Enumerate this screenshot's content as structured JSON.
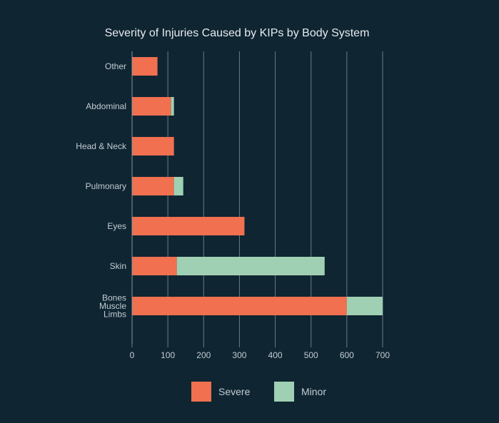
{
  "chart_data": {
    "type": "bar",
    "orientation": "horizontal",
    "stacked": true,
    "title": "Severity of Injuries Caused by KIPs by Body System",
    "categories": [
      [
        "Other"
      ],
      [
        "Abdominal"
      ],
      [
        "Head & Neck"
      ],
      [
        "Pulmonary"
      ],
      [
        "Eyes"
      ],
      [
        "Skin"
      ],
      [
        "Bones",
        "Muscle",
        "Limbs"
      ]
    ],
    "series": [
      {
        "name": "Severe",
        "color": "#f07050",
        "values": [
          71,
          109,
          117,
          117,
          314,
          125,
          600
        ]
      },
      {
        "name": "Minor",
        "color": "#9fd0b3",
        "values": [
          0,
          8,
          0,
          26,
          0,
          413,
          100
        ]
      }
    ],
    "xlim": [
      0,
      700
    ],
    "xticks": [
      0,
      100,
      200,
      300,
      400,
      500,
      600,
      700
    ],
    "grid": true,
    "legend_position": "bottom"
  }
}
